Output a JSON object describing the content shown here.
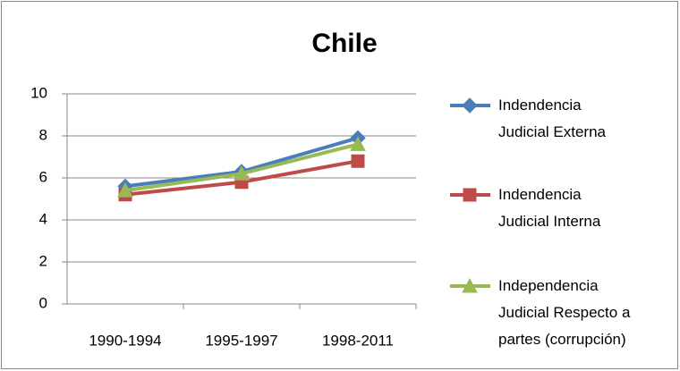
{
  "chart_data": {
    "type": "line",
    "title": "Chile",
    "categories": [
      "1990-1994",
      "1995-1997",
      "1998-2011"
    ],
    "series": [
      {
        "name": "Indendencia\nJudicial Externa",
        "color": "#4a7ebb",
        "marker": "diamond",
        "values": [
          5.6,
          6.3,
          7.9
        ]
      },
      {
        "name": "Indendencia\nJudicial Interna",
        "color": "#be4b48",
        "marker": "square",
        "values": [
          5.2,
          5.8,
          6.8
        ]
      },
      {
        "name": "Independencia\nJudicial Respecto a\npartes (corrupción)",
        "color": "#98b954",
        "marker": "triangle",
        "values": [
          5.4,
          6.2,
          7.6
        ]
      }
    ],
    "ylim": [
      0,
      10
    ],
    "yticks": [
      0,
      2,
      4,
      6,
      8,
      10
    ],
    "grid": true,
    "legend": "right"
  }
}
